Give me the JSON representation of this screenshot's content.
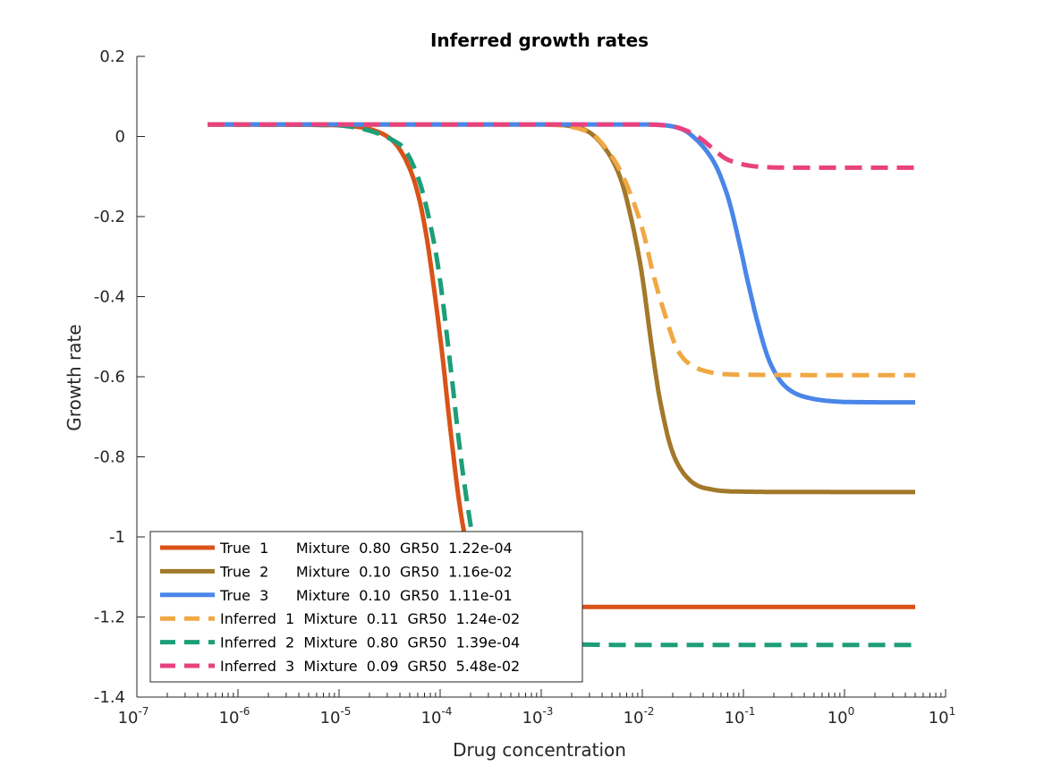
{
  "chart_data": {
    "type": "line",
    "title": "Inferred growth rates",
    "xlabel": "Drug concentration",
    "ylabel": "Growth rate",
    "xscale": "log",
    "xlim": [
      1e-07,
      10
    ],
    "ylim": [
      -1.4,
      0.2
    ],
    "grid": false,
    "legend_position": "bottom-left",
    "x_ticks": [
      {
        "base": "10",
        "exp": "-7"
      },
      {
        "base": "10",
        "exp": "-6"
      },
      {
        "base": "10",
        "exp": "-5"
      },
      {
        "base": "10",
        "exp": "-4"
      },
      {
        "base": "10",
        "exp": "-3"
      },
      {
        "base": "10",
        "exp": "-2"
      },
      {
        "base": "10",
        "exp": "-1"
      },
      {
        "base": "10",
        "exp": "0"
      },
      {
        "base": "10",
        "exp": "1"
      }
    ],
    "y_ticks": [
      "0.2",
      "0",
      "-0.2",
      "-0.4",
      "-0.6",
      "-0.8",
      "-1",
      "-1.2",
      "-1.4"
    ],
    "x_range": [
      5e-07,
      5
    ],
    "series": [
      {
        "name": "True  1      Mixture  0.80  GR50  1.22e-04",
        "color": "#D95319",
        "style": "solid",
        "x": [
          5e-07,
          1e-06,
          1e-05,
          3e-05,
          5e-05,
          7e-05,
          0.0001,
          0.00013,
          0.00016,
          0.0002,
          0.00025,
          0.0003,
          0.0005,
          0.001,
          0.01,
          0.1,
          1,
          5
        ],
        "y": [
          0.03,
          0.03,
          0.028,
          0.0,
          -0.08,
          -0.22,
          -0.5,
          -0.76,
          -0.94,
          -1.06,
          -1.12,
          -1.15,
          -1.17,
          -1.175,
          -1.175,
          -1.175,
          -1.175,
          -1.175
        ]
      },
      {
        "name": "True  2      Mixture  0.10  GR50  1.16e-02",
        "color": "#A2782A",
        "style": "solid",
        "x": [
          5e-07,
          0.001,
          0.0025,
          0.004,
          0.006,
          0.008,
          0.01,
          0.012,
          0.015,
          0.02,
          0.03,
          0.05,
          0.1,
          1,
          5
        ],
        "y": [
          0.03,
          0.03,
          0.02,
          -0.02,
          -0.1,
          -0.22,
          -0.35,
          -0.5,
          -0.66,
          -0.79,
          -0.86,
          -0.882,
          -0.887,
          -0.888,
          -0.888
        ]
      },
      {
        "name": "True  3      Mixture  0.10  GR50  1.11e-01",
        "color": "#4A86E8",
        "style": "solid",
        "x": [
          5e-07,
          0.01,
          0.02,
          0.03,
          0.05,
          0.07,
          0.09,
          0.11,
          0.14,
          0.18,
          0.25,
          0.4,
          1,
          5
        ],
        "y": [
          0.03,
          0.03,
          0.025,
          0.005,
          -0.06,
          -0.15,
          -0.26,
          -0.36,
          -0.47,
          -0.56,
          -0.62,
          -0.65,
          -0.663,
          -0.664
        ]
      },
      {
        "name": "Inferred  1  Mixture  0.11  GR50  1.24e-02",
        "color": "#F0A844",
        "style": "dashed",
        "x": [
          5e-07,
          0.001,
          0.003,
          0.005,
          0.007,
          0.01,
          0.013,
          0.017,
          0.022,
          0.03,
          0.05,
          0.1,
          1,
          5
        ],
        "y": [
          0.03,
          0.03,
          0.01,
          -0.05,
          -0.12,
          -0.23,
          -0.35,
          -0.45,
          -0.53,
          -0.57,
          -0.59,
          -0.595,
          -0.596,
          -0.596
        ]
      },
      {
        "name": "Inferred  2  Mixture  0.80  GR50  1.39e-04",
        "color": "#1D9E78",
        "style": "dashed",
        "x": [
          5e-07,
          1e-05,
          4e-05,
          6e-05,
          8e-05,
          0.0001,
          0.00013,
          0.00016,
          0.0002,
          0.00025,
          0.0003,
          0.0005,
          0.001,
          0.01,
          1,
          5
        ],
        "y": [
          0.03,
          0.028,
          -0.02,
          -0.1,
          -0.22,
          -0.36,
          -0.6,
          -0.8,
          -0.97,
          -1.1,
          -1.17,
          -1.24,
          -1.265,
          -1.27,
          -1.27,
          -1.27
        ]
      },
      {
        "name": "Inferred  3  Mixture  0.09  GR50  5.48e-02",
        "color": "#E8427E",
        "style": "dashed",
        "x": [
          5e-07,
          0.01,
          0.02,
          0.03,
          0.04,
          0.055,
          0.07,
          0.1,
          0.15,
          0.3,
          1,
          5
        ],
        "y": [
          0.03,
          0.03,
          0.025,
          0.01,
          -0.01,
          -0.04,
          -0.058,
          -0.07,
          -0.076,
          -0.078,
          -0.078,
          -0.078
        ]
      }
    ]
  }
}
